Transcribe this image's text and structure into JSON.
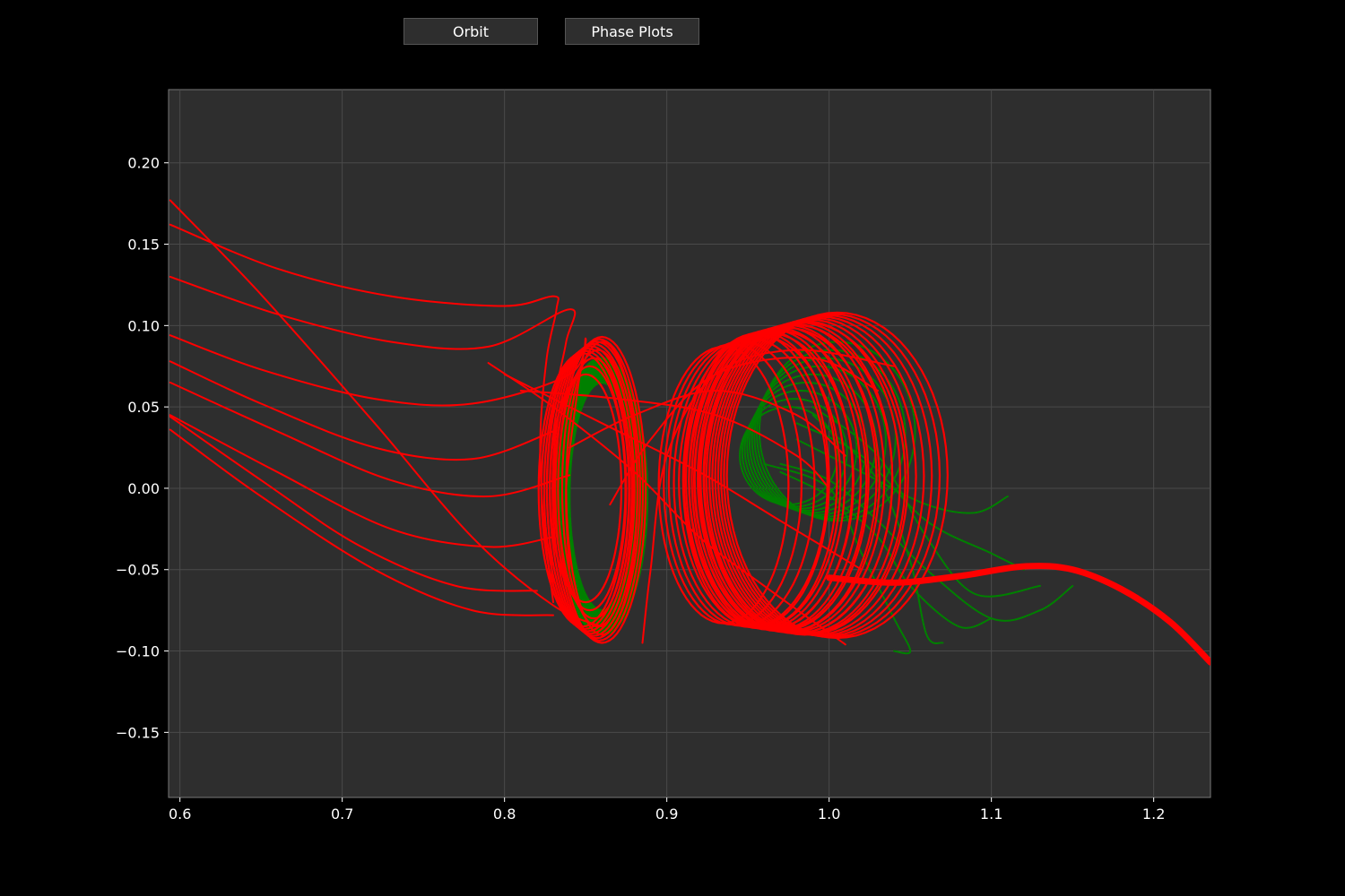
{
  "toolbar": {
    "orbit_label": "Orbit",
    "phase_label": "Phase Plots"
  },
  "colors": {
    "background": "#000000",
    "plot_bg": "#2e2e2e",
    "grid": "#4a4a4a",
    "red": "#ff0000",
    "green": "#008000"
  },
  "chart_data": {
    "type": "line",
    "title": "",
    "xlabel": "",
    "ylabel": "",
    "xlim": [
      0.593,
      1.235
    ],
    "ylim": [
      -0.19,
      0.245
    ],
    "grid": true,
    "x_ticks": [
      0.6,
      0.7,
      0.8,
      0.9,
      1.0,
      1.1,
      1.2
    ],
    "y_ticks": [
      0.2,
      0.15,
      0.1,
      0.05,
      0.0,
      -0.05,
      -0.1,
      -0.15
    ],
    "x_tick_labels": [
      "0.6",
      "0.7",
      "0.8",
      "0.9",
      "1.0",
      "1.1",
      "1.2"
    ],
    "y_tick_labels": [
      "0.20",
      "0.15",
      "0.10",
      "0.05",
      "0.00",
      "−0.05",
      "−0.10",
      "−0.15"
    ],
    "series": [
      {
        "color": "#ff0000",
        "lines": [
          [
            [
              0.594,
              0.177
            ],
            [
              0.65,
              0.119
            ],
            [
              0.72,
              0.04
            ],
            [
              0.78,
              -0.03
            ],
            [
              0.83,
              -0.072
            ],
            [
              0.86,
              -0.085
            ]
          ],
          [
            [
              0.594,
              0.162
            ],
            [
              0.66,
              0.135
            ],
            [
              0.73,
              0.118
            ],
            [
              0.8,
              0.112
            ],
            [
              0.83,
              0.118
            ],
            [
              0.832,
              0.11
            ],
            [
              0.826,
              0.08
            ],
            [
              0.822,
              0.03
            ],
            [
              0.824,
              -0.02
            ],
            [
              0.83,
              -0.07
            ]
          ],
          [
            [
              0.594,
              0.13
            ],
            [
              0.66,
              0.107
            ],
            [
              0.73,
              0.09
            ],
            [
              0.79,
              0.087
            ],
            [
              0.84,
              0.11
            ],
            [
              0.838,
              0.09
            ],
            [
              0.83,
              0.05
            ],
            [
              0.826,
              0.0
            ],
            [
              0.83,
              -0.06
            ]
          ],
          [
            [
              0.594,
              0.094
            ],
            [
              0.65,
              0.073
            ],
            [
              0.72,
              0.055
            ],
            [
              0.78,
              0.052
            ],
            [
              0.84,
              0.07
            ],
            [
              0.85,
              0.092
            ],
            [
              0.845,
              0.06
            ],
            [
              0.838,
              0.0
            ],
            [
              0.84,
              -0.05
            ]
          ],
          [
            [
              0.594,
              0.078
            ],
            [
              0.65,
              0.052
            ],
            [
              0.72,
              0.025
            ],
            [
              0.78,
              0.018
            ],
            [
              0.83,
              0.035
            ]
          ],
          [
            [
              0.594,
              0.065
            ],
            [
              0.66,
              0.035
            ],
            [
              0.73,
              0.005
            ],
            [
              0.79,
              -0.005
            ],
            [
              0.84,
              0.008
            ]
          ],
          [
            [
              0.594,
              0.045
            ],
            [
              0.66,
              0.01
            ],
            [
              0.73,
              -0.025
            ],
            [
              0.79,
              -0.036
            ],
            [
              0.83,
              -0.03
            ]
          ],
          [
            [
              0.594,
              0.044
            ],
            [
              0.65,
              0.005
            ],
            [
              0.71,
              -0.035
            ],
            [
              0.77,
              -0.06
            ],
            [
              0.82,
              -0.063
            ]
          ],
          [
            [
              0.594,
              0.036
            ],
            [
              0.65,
              -0.005
            ],
            [
              0.72,
              -0.05
            ],
            [
              0.78,
              -0.075
            ],
            [
              0.83,
              -0.078
            ]
          ],
          [
            [
              0.79,
              0.077
            ],
            [
              0.83,
              0.05
            ],
            [
              0.88,
              0.01
            ],
            [
              0.92,
              -0.03
            ],
            [
              0.96,
              -0.06
            ],
            [
              1.01,
              -0.096
            ]
          ],
          [
            [
              0.8,
              0.07
            ],
            [
              0.86,
              0.04
            ],
            [
              0.92,
              0.01
            ],
            [
              0.97,
              -0.02
            ],
            [
              1.02,
              -0.05
            ]
          ],
          [
            [
              0.81,
              0.06
            ],
            [
              0.87,
              0.055
            ],
            [
              0.93,
              0.045
            ],
            [
              0.98,
              0.02
            ],
            [
              1.0,
              0.0
            ]
          ],
          [
            [
              0.84,
              0.025
            ],
            [
              0.88,
              0.045
            ],
            [
              0.93,
              0.06
            ],
            [
              0.98,
              0.045
            ],
            [
              1.01,
              0.02
            ]
          ],
          [
            [
              0.865,
              -0.01
            ],
            [
              0.89,
              0.03
            ],
            [
              0.93,
              0.07
            ],
            [
              0.99,
              0.08
            ],
            [
              1.03,
              0.06
            ]
          ],
          [
            [
              0.885,
              -0.095
            ],
            [
              0.89,
              -0.05
            ],
            [
              0.9,
              0.02
            ],
            [
              0.93,
              0.07
            ],
            [
              0.98,
              0.085
            ],
            [
              1.04,
              0.075
            ]
          ]
        ],
        "loops": [
          {
            "cx_range": [
              0.848,
              0.86
            ],
            "cy": -0.001,
            "rx": 0.027,
            "ry_range": [
              0.084,
              0.094
            ],
            "n": 8
          },
          {
            "cx_range": [
              0.85,
              0.86
            ],
            "cy": 0.0,
            "rx": 0.022,
            "ry_range": [
              0.07,
              0.09
            ],
            "n": 5
          }
        ],
        "spirals": [
          {
            "cx_range": [
              0.955,
              1.005
            ],
            "cy_range": [
              0.005,
              0.008
            ],
            "rx_range": [
              0.045,
              0.068
            ],
            "ry_range": [
              0.09,
              0.1
            ],
            "n": 16
          },
          {
            "cx_range": [
              0.935,
              0.985
            ],
            "cy_range": [
              0.002,
              0.006
            ],
            "rx_range": [
              0.04,
              0.062
            ],
            "ry_range": [
              0.085,
              0.096
            ],
            "n": 10
          }
        ],
        "tail": [
          [
            1.0,
            -0.055
          ],
          [
            1.04,
            -0.058
          ],
          [
            1.08,
            -0.054
          ],
          [
            1.12,
            -0.048
          ],
          [
            1.15,
            -0.05
          ],
          [
            1.18,
            -0.062
          ],
          [
            1.21,
            -0.082
          ],
          [
            1.235,
            -0.107
          ]
        ],
        "tail_width": 7
      },
      {
        "color": "#008000",
        "lines": [
          [
            [
              0.97,
              0.015
            ],
            [
              1.0,
              0.005
            ],
            [
              1.03,
              -0.02
            ],
            [
              1.06,
              -0.05
            ],
            [
              1.1,
              -0.08
            ],
            [
              1.13,
              -0.075
            ],
            [
              1.15,
              -0.06
            ]
          ],
          [
            [
              0.97,
              0.01
            ],
            [
              1.0,
              -0.005
            ],
            [
              1.03,
              -0.03
            ],
            [
              1.05,
              -0.06
            ],
            [
              1.08,
              -0.085
            ],
            [
              1.1,
              -0.08
            ]
          ],
          [
            [
              0.96,
              0.015
            ],
            [
              1.0,
              0.0
            ],
            [
              1.02,
              -0.04
            ],
            [
              1.04,
              -0.08
            ],
            [
              1.05,
              -0.1
            ],
            [
              1.04,
              -0.1
            ]
          ],
          [
            [
              0.98,
              0.03
            ],
            [
              1.02,
              0.01
            ],
            [
              1.06,
              -0.01
            ],
            [
              1.09,
              -0.015
            ],
            [
              1.11,
              -0.005
            ]
          ],
          [
            [
              0.98,
              0.04
            ],
            [
              1.02,
              0.02
            ],
            [
              1.06,
              -0.02
            ],
            [
              1.1,
              -0.04
            ],
            [
              1.12,
              -0.05
            ]
          ],
          [
            [
              0.99,
              0.05
            ],
            [
              1.03,
              0.02
            ],
            [
              1.06,
              -0.03
            ],
            [
              1.09,
              -0.065
            ],
            [
              1.13,
              -0.06
            ]
          ],
          [
            [
              0.99,
              0.045
            ],
            [
              1.03,
              0.005
            ],
            [
              1.05,
              -0.045
            ],
            [
              1.06,
              -0.09
            ],
            [
              1.07,
              -0.095
            ]
          ]
        ],
        "fan": {
          "cx": 0.86,
          "cy": -0.005,
          "rx_range": [
            0.02,
            0.028
          ],
          "ry_range": [
            0.07,
            0.085
          ],
          "n": 12
        },
        "inner": {
          "cx_range": [
            0.975,
            1.005
          ],
          "cy_range": [
            0.02,
            0.035
          ],
          "rx_range": [
            0.03,
            0.048
          ],
          "ry_range": [
            0.03,
            0.055
          ],
          "n": 9
        }
      }
    ]
  }
}
